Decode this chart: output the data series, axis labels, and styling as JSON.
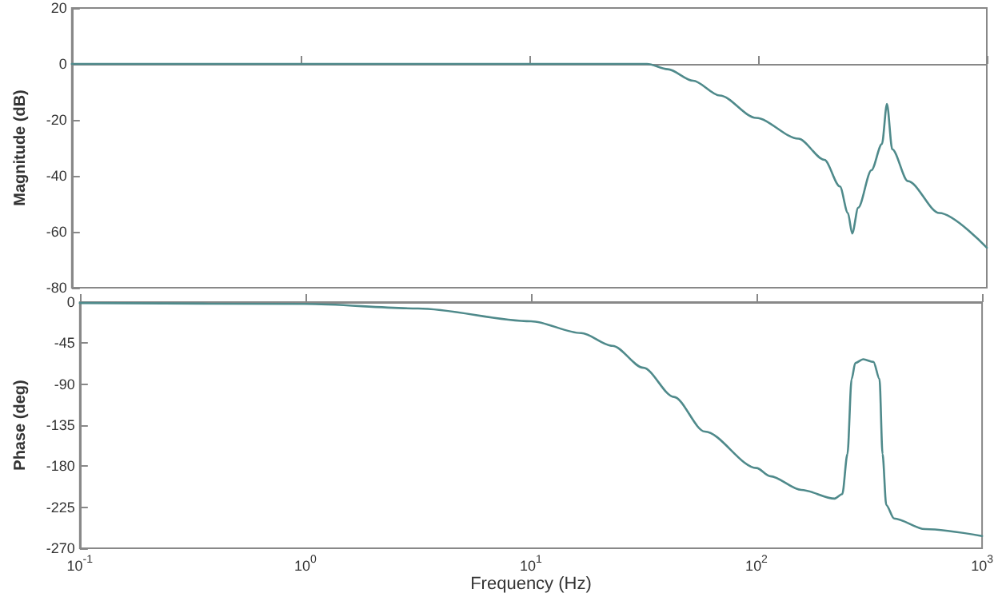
{
  "chart_data": [
    {
      "type": "line",
      "ylabel": "Magnitude (dB)",
      "color": "#4f8a8b",
      "log": "x",
      "tick_labels": "y",
      "x": [
        0.1,
        0.3,
        1,
        3,
        10,
        23,
        32.7,
        40.3,
        52,
        68,
        98,
        150,
        195,
        228,
        247,
        258,
        274,
        313,
        348,
        366,
        386,
        452,
        620,
        1000
      ],
      "values": [
        0,
        0,
        0,
        0,
        0,
        0,
        0,
        -1.9,
        -6,
        -11.3,
        -19.3,
        -26.7,
        -34.3,
        -43.8,
        -53.3,
        -60.6,
        -51.4,
        -38,
        -28.6,
        -14.3,
        -30.5,
        -41.9,
        -53.3,
        -65.7
      ],
      "xlim": [
        0.1,
        1000
      ],
      "xticks": [
        {
          "value": 0.1,
          "label": null
        },
        {
          "value": 1,
          "label": null
        },
        {
          "value": 10,
          "label": null
        },
        {
          "value": 100,
          "label": null
        },
        {
          "value": 1000,
          "label": null
        }
      ],
      "ylim": [
        -80,
        20
      ],
      "yticks": [
        -80,
        -60,
        -40,
        -20,
        0,
        20
      ]
    },
    {
      "type": "line",
      "ylabel": "Phase (deg)",
      "xlabel": "Frequency (Hz)",
      "color": "#4f8a8b",
      "log": "x",
      "x": [
        0.1,
        1,
        3.16,
        10,
        16.7,
        23,
        31.5,
        43,
        59,
        100,
        115,
        158,
        222,
        240,
        253,
        264,
        274,
        297,
        330,
        351,
        362,
        376,
        407,
        558,
        1000
      ],
      "values": [
        -1,
        -2,
        -7,
        -21,
        -34,
        -48,
        -72,
        -104,
        -142,
        -182,
        -191,
        -206,
        -215.5,
        -210.6,
        -166.7,
        -84.4,
        -66.8,
        -62.7,
        -65.6,
        -84.4,
        -166.7,
        -222.6,
        -237.3,
        -249,
        -256.6
      ],
      "xlim": [
        0.1,
        1000
      ],
      "xticks": [
        {
          "value": 0.1,
          "label": "10$^{-1}$"
        },
        {
          "value": 1,
          "label": "10$^{0}$"
        },
        {
          "value": 10,
          "label": "10$^{1}$"
        },
        {
          "value": 100,
          "label": "10$^{2}$"
        },
        {
          "value": 1000,
          "label": "10$^{3}$"
        }
      ],
      "ylim": [
        -270,
        0
      ],
      "yticks": [
        -270,
        -225,
        -180,
        -135,
        -90,
        -45,
        0
      ]
    }
  ]
}
